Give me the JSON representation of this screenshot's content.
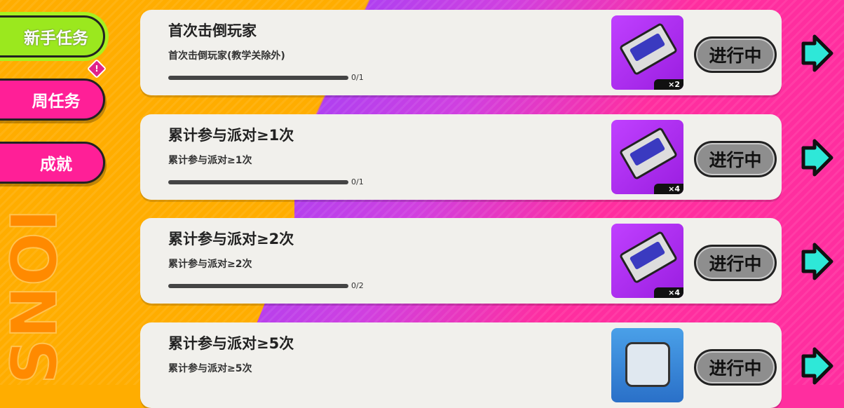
{
  "sidebar": {
    "tabs": [
      {
        "label": "新手任务",
        "active": true
      },
      {
        "label": "周任务",
        "badge": "!"
      },
      {
        "label": "成就"
      }
    ],
    "background_text": "SNOI"
  },
  "status_label": "进行中",
  "colors": {
    "orange": "#ffad00",
    "pink": "#ff2e9f",
    "green": "#9be81e",
    "teal": "#2ee8d8"
  },
  "tasks": [
    {
      "title": "首次击倒玩家",
      "desc": "首次击倒玩家(教学关除外)",
      "progress": "0/1",
      "progress_fraction": 0,
      "reward_icon": "cassette-tape-icon",
      "quantity": "×2"
    },
    {
      "title": "累计参与派对≥1次",
      "desc": "累计参与派对≥1次",
      "progress": "0/1",
      "progress_fraction": 0,
      "reward_icon": "cassette-tape-icon",
      "quantity": "×4"
    },
    {
      "title": "累计参与派对≥2次",
      "desc": "累计参与派对≥2次",
      "progress": "0/2",
      "progress_fraction": 0,
      "reward_icon": "cassette-tape-icon",
      "quantity": "×4"
    },
    {
      "title": "累计参与派对≥5次",
      "desc": "累计参与派对≥5次",
      "progress": "",
      "reward_icon": "cube-box-icon",
      "quantity": ""
    }
  ]
}
